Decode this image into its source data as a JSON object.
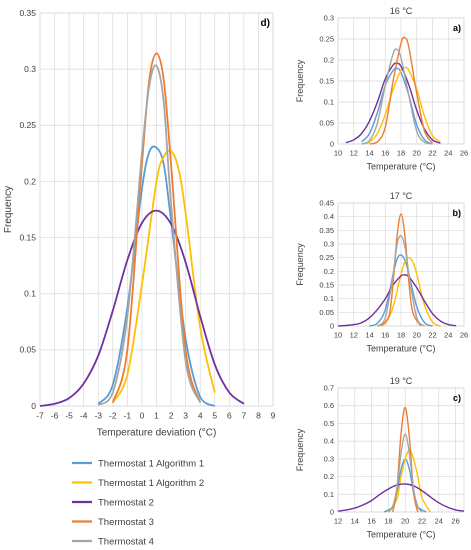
{
  "colors": {
    "Thermostat 1 Algorithm 1": "#5b9bd5",
    "Thermostat 1 Algorithm 2": "#ffc000",
    "Thermostat 2": "#7030a0",
    "Thermostat 3": "#ed7d31",
    "Thermostat 4": "#a5a5a5",
    "grid": "#d9d9d9",
    "text": "#404040"
  },
  "legend": [
    "Thermostat 1 Algorithm 1",
    "Thermostat 1 Algorithm 2",
    "Thermostat 2",
    "Thermostat 3",
    "Thermostat 4"
  ],
  "chart_data": [
    {
      "id": "d",
      "type": "line",
      "panel_label": "d)",
      "title": "",
      "xlabel": "Temperature deviation (°C)",
      "ylabel": "Frequency",
      "xlim": [
        -7,
        9
      ],
      "ylim": [
        0,
        0.35
      ],
      "xticks": [
        -7,
        -6,
        -5,
        -4,
        -3,
        -2,
        -1,
        0,
        1,
        2,
        3,
        4,
        5,
        6,
        7,
        8,
        9
      ],
      "yticks": [
        "0",
        "0.05",
        "0.1",
        "0.15",
        "0.2",
        "0.25",
        "0.3",
        "0.35"
      ],
      "grid": true,
      "series": [
        {
          "name": "Thermostat 1 Algorithm 1",
          "x": [
            -3,
            -2,
            -1,
            0,
            0.5,
            1,
            1.5,
            2,
            3,
            4,
            5
          ],
          "y": [
            0.002,
            0.019,
            0.088,
            0.193,
            0.226,
            0.23,
            0.215,
            0.165,
            0.06,
            0.008,
            0
          ]
        },
        {
          "name": "Thermostat 1 Algorithm 2",
          "x": [
            -2,
            -1,
            0,
            1,
            1.5,
            2,
            2.5,
            3,
            4,
            5
          ],
          "y": [
            0.003,
            0.028,
            0.108,
            0.2,
            0.222,
            0.227,
            0.212,
            0.172,
            0.07,
            0.012
          ]
        },
        {
          "name": "Thermostat 2",
          "x": [
            -7,
            -6,
            -5,
            -4,
            -3,
            -2,
            -1,
            0,
            1,
            2,
            3,
            4,
            5,
            6,
            7
          ],
          "y": [
            0,
            0.002,
            0.007,
            0.02,
            0.045,
            0.085,
            0.13,
            0.163,
            0.174,
            0.162,
            0.128,
            0.08,
            0.037,
            0.012,
            0.002
          ]
        },
        {
          "name": "Thermostat 3",
          "x": [
            -2,
            -1,
            0,
            0.5,
            1,
            1.5,
            2,
            3,
            4
          ],
          "y": [
            0.003,
            0.05,
            0.215,
            0.29,
            0.314,
            0.29,
            0.215,
            0.05,
            0.003
          ]
        },
        {
          "name": "Thermostat 4",
          "x": [
            -3,
            -2,
            -1,
            0,
            0.5,
            1,
            1.5,
            2,
            3,
            4
          ],
          "y": [
            0.001,
            0.012,
            0.08,
            0.225,
            0.285,
            0.303,
            0.27,
            0.18,
            0.04,
            0.003
          ]
        }
      ]
    },
    {
      "id": "a",
      "type": "line",
      "panel_label": "a)",
      "title": "16 °C",
      "xlabel": "Temperature (°C)",
      "ylabel": "Frequency",
      "xlim": [
        10,
        26
      ],
      "ylim": [
        0,
        0.3
      ],
      "xticks": [
        10,
        12,
        14,
        16,
        18,
        20,
        22,
        24,
        26
      ],
      "yticks": [
        "0",
        "0.05",
        "0.1",
        "0.15",
        "0.2",
        "0.25",
        "0.3"
      ],
      "grid": true,
      "series": [
        {
          "name": "Thermostat 1 Algorithm 1",
          "x": [
            13,
            14,
            15,
            16,
            17,
            17.5,
            18,
            19,
            20,
            21,
            22
          ],
          "y": [
            0.005,
            0.025,
            0.075,
            0.14,
            0.175,
            0.18,
            0.17,
            0.115,
            0.045,
            0.01,
            0
          ]
        },
        {
          "name": "Thermostat 1 Algorithm 2",
          "x": [
            13,
            14,
            15,
            16,
            17,
            18,
            18.5,
            19,
            20,
            21,
            22,
            23
          ],
          "y": [
            0,
            0.005,
            0.025,
            0.07,
            0.13,
            0.175,
            0.182,
            0.175,
            0.13,
            0.065,
            0.02,
            0.005
          ]
        },
        {
          "name": "Thermostat 2",
          "x": [
            11,
            12,
            13,
            14,
            15,
            16,
            17,
            17.5,
            18,
            19,
            20,
            21,
            22,
            23
          ],
          "y": [
            0.003,
            0.01,
            0.025,
            0.055,
            0.1,
            0.155,
            0.188,
            0.192,
            0.185,
            0.14,
            0.08,
            0.035,
            0.01,
            0.002
          ]
        },
        {
          "name": "Thermostat 3",
          "x": [
            14,
            15,
            16,
            17,
            18,
            18.5,
            19,
            20,
            21,
            22
          ],
          "y": [
            0,
            0.005,
            0.04,
            0.15,
            0.24,
            0.253,
            0.23,
            0.12,
            0.03,
            0.003
          ]
        },
        {
          "name": "Thermostat 4",
          "x": [
            13,
            14,
            15,
            16,
            17,
            17.5,
            18,
            19,
            20,
            21,
            22
          ],
          "y": [
            0,
            0.008,
            0.05,
            0.14,
            0.215,
            0.225,
            0.205,
            0.115,
            0.03,
            0.004,
            0
          ]
        }
      ]
    },
    {
      "id": "b",
      "type": "line",
      "panel_label": "b)",
      "title": "17 °C",
      "xlabel": "Temperature (°C)",
      "ylabel": "Frequency",
      "xlim": [
        10,
        26
      ],
      "ylim": [
        0,
        0.45
      ],
      "xticks": [
        10,
        12,
        14,
        16,
        18,
        20,
        22,
        24,
        26
      ],
      "yticks": [
        "0",
        "0.05",
        "0.1",
        "0.15",
        "0.2",
        "0.25",
        "0.3",
        "0.35",
        "0.4",
        "0.45"
      ],
      "grid": true,
      "series": [
        {
          "name": "Thermostat 1 Algorithm 1",
          "x": [
            14,
            15,
            16,
            17,
            17.5,
            18,
            18.5,
            19,
            20,
            21,
            22
          ],
          "y": [
            0,
            0.01,
            0.06,
            0.19,
            0.245,
            0.26,
            0.24,
            0.19,
            0.07,
            0.012,
            0
          ]
        },
        {
          "name": "Thermostat 1 Algorithm 2",
          "x": [
            15,
            16,
            17,
            18,
            18.5,
            19,
            19.5,
            20,
            21,
            22,
            23
          ],
          "y": [
            0,
            0.01,
            0.07,
            0.19,
            0.235,
            0.25,
            0.235,
            0.19,
            0.075,
            0.015,
            0
          ]
        },
        {
          "name": "Thermostat 2",
          "x": [
            10,
            11,
            12,
            13,
            14,
            15,
            16,
            17,
            18,
            18.5,
            19,
            20,
            21,
            22,
            23,
            24,
            25
          ],
          "y": [
            0,
            0.002,
            0.005,
            0.012,
            0.03,
            0.06,
            0.1,
            0.15,
            0.183,
            0.187,
            0.18,
            0.14,
            0.09,
            0.045,
            0.018,
            0.005,
            0.001
          ]
        },
        {
          "name": "Thermostat 3",
          "x": [
            15.5,
            16.5,
            17,
            17.5,
            18,
            18.5,
            19,
            19.5,
            20.5
          ],
          "y": [
            0,
            0.04,
            0.16,
            0.33,
            0.41,
            0.33,
            0.16,
            0.05,
            0
          ]
        },
        {
          "name": "Thermostat 4",
          "x": [
            15,
            16,
            17,
            17.5,
            18,
            18.5,
            19,
            20,
            21
          ],
          "y": [
            0,
            0.03,
            0.19,
            0.3,
            0.33,
            0.29,
            0.19,
            0.03,
            0
          ]
        }
      ]
    },
    {
      "id": "c",
      "type": "line",
      "panel_label": "c)",
      "title": "19 °C",
      "xlabel": "Temperature (°C)",
      "ylabel": "Frequency",
      "xlim": [
        12,
        27
      ],
      "ylim": [
        0,
        0.7
      ],
      "xticks": [
        12,
        14,
        16,
        18,
        20,
        22,
        24,
        26
      ],
      "yticks": [
        "0",
        "0.1",
        "0.2",
        "0.3",
        "0.4",
        "0.5",
        "0.6",
        "0.7"
      ],
      "grid": true,
      "series": [
        {
          "name": "Thermostat 1 Algorithm 1",
          "x": [
            17.5,
            18.5,
            19,
            19.5,
            20,
            20.5,
            21,
            21.5,
            22.5
          ],
          "y": [
            0,
            0.03,
            0.11,
            0.24,
            0.3,
            0.24,
            0.11,
            0.03,
            0
          ]
        },
        {
          "name": "Thermostat 1 Algorithm 2",
          "x": [
            18,
            19,
            19.5,
            20,
            20.5,
            21,
            21.5,
            22,
            23
          ],
          "y": [
            0,
            0.07,
            0.2,
            0.3,
            0.35,
            0.3,
            0.2,
            0.08,
            0
          ]
        },
        {
          "name": "Thermostat 2",
          "x": [
            12,
            13,
            14,
            15,
            16,
            17,
            18,
            19,
            20,
            21,
            22,
            23,
            24,
            25,
            26,
            27
          ],
          "y": [
            0.005,
            0.012,
            0.022,
            0.04,
            0.065,
            0.1,
            0.13,
            0.152,
            0.158,
            0.148,
            0.12,
            0.085,
            0.052,
            0.028,
            0.012,
            0.005
          ]
        },
        {
          "name": "Thermostat 3",
          "x": [
            18.5,
            19,
            19.5,
            20,
            20.5,
            21,
            21.5
          ],
          "y": [
            0,
            0.12,
            0.44,
            0.59,
            0.42,
            0.11,
            0
          ]
        },
        {
          "name": "Thermostat 4",
          "x": [
            18,
            18.5,
            19,
            19.5,
            20,
            20.5,
            21,
            21.5,
            22
          ],
          "y": [
            0,
            0.03,
            0.13,
            0.33,
            0.44,
            0.33,
            0.13,
            0.03,
            0
          ]
        }
      ]
    }
  ]
}
